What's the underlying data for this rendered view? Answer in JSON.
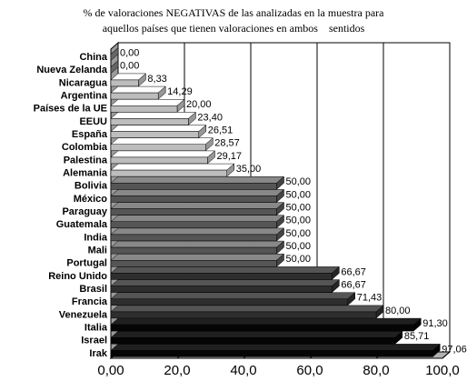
{
  "chart_data": {
    "type": "bar",
    "orientation": "horizontal",
    "title": [
      "% de valoraciones NEGATIVAS de las analizadas en la muestra para",
      "aquellos países que tienen valoraciones en ambos    sentidos"
    ],
    "categories": [
      "China",
      "Nueva Zelanda",
      "Nicaragua",
      "Argentina",
      "Países de la UE",
      "EEUU",
      "España",
      "Colombia",
      "Palestina",
      "Alemania",
      "Bolivia",
      "México",
      "Paraguay",
      "Guatemala",
      "India",
      "Mali",
      "Portugal",
      "Reino Unido",
      "Brasil",
      "Francia",
      "Venezuela",
      "Italia",
      "Israel",
      "Irak"
    ],
    "values": [
      0,
      0,
      8.33,
      14.29,
      20,
      23.4,
      26.51,
      28.57,
      29.17,
      35,
      50,
      50,
      50,
      50,
      50,
      50,
      50,
      66.67,
      66.67,
      71.43,
      80,
      91.3,
      85.71,
      97.06
    ],
    "value_labels": [
      "0,00",
      "0,00",
      "8,33",
      "14,29",
      "20,00",
      "23,40",
      "26,51",
      "28,57",
      "29,17",
      "35,00",
      "50,00",
      "50,00",
      "50,00",
      "50,00",
      "50,00",
      "50,00",
      "50,00",
      "66,67",
      "66,67",
      "71,43",
      "80,00",
      "91,30",
      "85,71",
      "97,06"
    ],
    "colors": [
      "#808080",
      "#808080",
      "#bdbdbd",
      "#bdbdbd",
      "#bdbdbd",
      "#bdbdbd",
      "#bdbdbd",
      "#bdbdbd",
      "#bdbdbd",
      "#bdbdbd",
      "#555555",
      "#555555",
      "#555555",
      "#555555",
      "#555555",
      "#555555",
      "#555555",
      "#2e2e2e",
      "#2e2e2e",
      "#2e2e2e",
      "#2e2e2e",
      "#050505",
      "#050505",
      "#050505"
    ],
    "xlim": [
      0,
      100
    ],
    "xticks": [
      {
        "value": 0,
        "label": "0,00"
      },
      {
        "value": 20,
        "label": "20,0"
      },
      {
        "value": 40,
        "label": "40,0"
      },
      {
        "value": 60,
        "label": "60,0"
      },
      {
        "value": 80,
        "label": "80,0"
      },
      {
        "value": 100,
        "label": "100,0"
      }
    ],
    "grid": true
  }
}
